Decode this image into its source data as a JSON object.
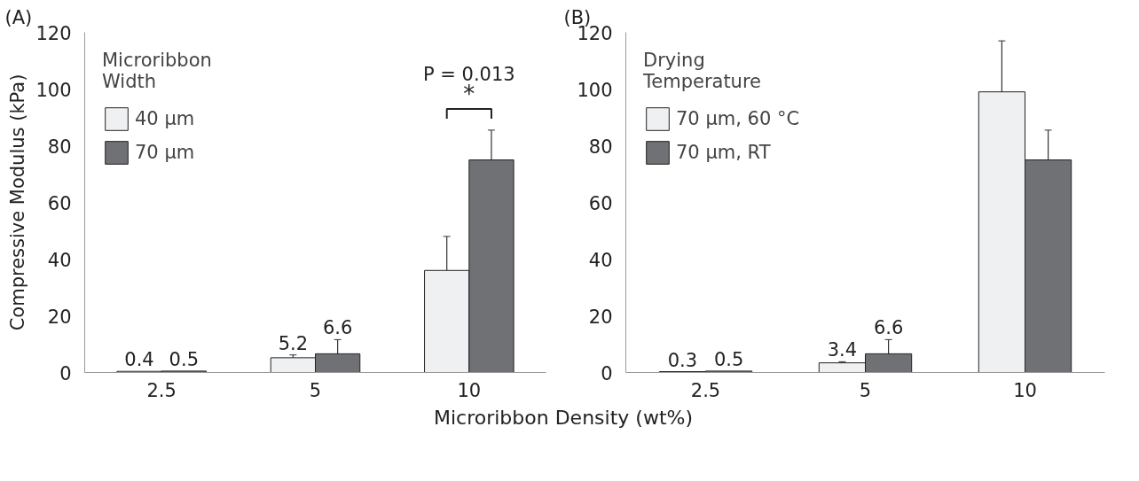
{
  "chart_data": [
    {
      "type": "bar",
      "title": "(A)",
      "ylabel": "Compressive Modulus (kPa)",
      "xlabel": "Microribbon Density (wt%)",
      "legend_title": "Microribbon Width",
      "legend": "top left",
      "categories": [
        "2.5",
        "5",
        "10"
      ],
      "ylim": [
        0,
        120
      ],
      "yticks": [
        0,
        20,
        40,
        60,
        80,
        100,
        120
      ],
      "grid": false,
      "series": [
        {
          "name": "40 µm",
          "color": "#eff0f2",
          "values": [
            0.4,
            5.2,
            36
          ],
          "errors": [
            null,
            1,
            12
          ],
          "value_labels": [
            "0.4",
            "5.2",
            null
          ]
        },
        {
          "name": "70 µm",
          "color": "#707174",
          "values": [
            0.5,
            6.6,
            75
          ],
          "errors": [
            null,
            5,
            10.5
          ],
          "value_labels": [
            "0.5",
            "6.6",
            null
          ]
        }
      ],
      "annotations": [
        "P = 0.013",
        "*"
      ]
    },
    {
      "type": "bar",
      "title": "(B)",
      "legend_title": "Drying Temperature",
      "legend": "top left",
      "categories": [
        "2.5",
        "5",
        "10"
      ],
      "ylim": [
        0,
        120
      ],
      "yticks": [
        0,
        20,
        40,
        60,
        80,
        100,
        120
      ],
      "grid": false,
      "series": [
        {
          "name": "70 µm, 60 °C",
          "color": "#eff0f2",
          "values": [
            0.3,
            3.4,
            99
          ],
          "errors": [
            null,
            0.4,
            18
          ],
          "value_labels": [
            "0.3",
            "3.4",
            null
          ]
        },
        {
          "name": "70 µm, RT",
          "color": "#707174",
          "values": [
            0.5,
            6.6,
            75
          ],
          "errors": [
            null,
            5,
            10.5
          ],
          "value_labels": [
            "0.5",
            "6.6",
            null
          ]
        }
      ]
    }
  ]
}
